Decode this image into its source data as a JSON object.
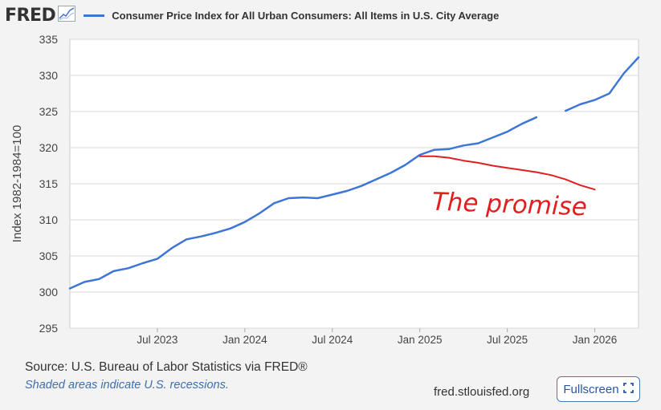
{
  "header": {
    "logo": "FRED",
    "logo_icon": "chart-line-icon",
    "series_label": "Consumer Price Index for All Urban Consumers: All Items in U.S. City Average"
  },
  "colors": {
    "series": "#3d76d6",
    "annotation": "#e02020",
    "grid": "#d9d9d9",
    "text": "#333333"
  },
  "chart_data": {
    "type": "line",
    "ylabel": "Index 1982-1984=100",
    "ylim": [
      295,
      335
    ],
    "yticks": [
      295,
      300,
      305,
      310,
      315,
      320,
      325,
      330,
      335
    ],
    "xlim": [
      "2023-01",
      "2026-04"
    ],
    "xticks": [
      {
        "label": "Jul 2023",
        "date": "2023-07"
      },
      {
        "label": "Jan 2024",
        "date": "2024-01"
      },
      {
        "label": "Jul 2024",
        "date": "2024-07"
      },
      {
        "label": "Jan 2025",
        "date": "2025-01"
      },
      {
        "label": "Jul 2025",
        "date": "2025-07"
      },
      {
        "label": "Jan 2026",
        "date": "2026-01"
      }
    ],
    "grid": true,
    "series": [
      {
        "points": [
          [
            "2023-01",
            300.5
          ],
          [
            "2023-02",
            301.4
          ],
          [
            "2023-03",
            301.8
          ],
          [
            "2023-04",
            302.9
          ],
          [
            "2023-05",
            303.3
          ],
          [
            "2023-06",
            304.0
          ],
          [
            "2023-07",
            304.6
          ],
          [
            "2023-08",
            306.1
          ],
          [
            "2023-09",
            307.3
          ],
          [
            "2023-10",
            307.7
          ],
          [
            "2023-11",
            308.2
          ],
          [
            "2023-12",
            308.8
          ],
          [
            "2024-01",
            309.7
          ],
          [
            "2024-02",
            310.9
          ],
          [
            "2024-03",
            312.3
          ],
          [
            "2024-04",
            313.0
          ],
          [
            "2024-05",
            313.1
          ],
          [
            "2024-06",
            313.0
          ],
          [
            "2024-07",
            313.5
          ],
          [
            "2024-08",
            314.0
          ],
          [
            "2024-09",
            314.7
          ],
          [
            "2024-10",
            315.6
          ],
          [
            "2024-11",
            316.5
          ],
          [
            "2024-12",
            317.6
          ],
          [
            "2025-01",
            319.0
          ],
          [
            "2025-02",
            319.7
          ],
          [
            "2025-03",
            319.8
          ],
          [
            "2025-04",
            320.3
          ],
          [
            "2025-05",
            320.6
          ],
          [
            "2025-06",
            321.4
          ],
          [
            "2025-07",
            322.2
          ],
          [
            "2025-08",
            323.3
          ],
          [
            "2025-09",
            324.2
          ],
          [
            "2025-10",
            null
          ],
          [
            "2025-11",
            325.1
          ],
          [
            "2025-12",
            326.0
          ],
          [
            "2026-01",
            326.6
          ],
          [
            "2026-02",
            327.5
          ],
          [
            "2026-03",
            330.3
          ],
          [
            "2026-04",
            332.5
          ]
        ]
      }
    ],
    "annotation": {
      "text": "The promise",
      "points": [
        [
          "2025-01",
          318.8
        ],
        [
          "2025-02",
          318.8
        ],
        [
          "2025-03",
          318.6
        ],
        [
          "2025-04",
          318.2
        ],
        [
          "2025-05",
          317.9
        ],
        [
          "2025-06",
          317.5
        ],
        [
          "2025-07",
          317.2
        ],
        [
          "2025-08",
          316.9
        ],
        [
          "2025-09",
          316.6
        ],
        [
          "2025-10",
          316.2
        ],
        [
          "2025-11",
          315.6
        ],
        [
          "2025-12",
          314.8
        ],
        [
          "2026-01",
          314.2
        ]
      ]
    }
  },
  "footer": {
    "source": "Source: U.S. Bureau of Labor Statistics via FRED®",
    "recessions": "Shaded areas indicate U.S. recessions.",
    "site": "fred.stlouisfed.org",
    "fullscreen_label": "Fullscreen",
    "fullscreen_icon": "expand-icon"
  }
}
